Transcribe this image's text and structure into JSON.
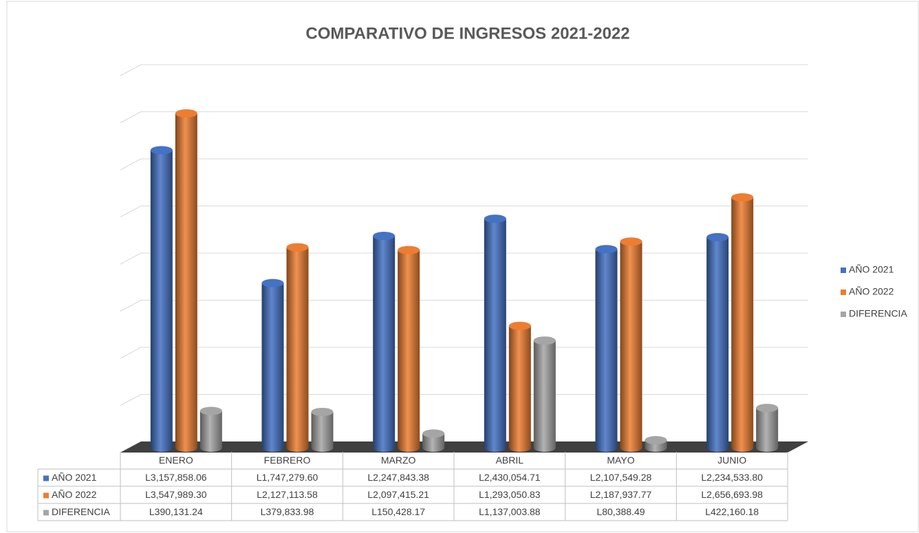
{
  "chart_data": {
    "type": "bar3d",
    "title": "COMPARATIVO DE INGRESOS 2021-2022",
    "categories": [
      "ENERO",
      "FEBRERO",
      "MARZO",
      "ABRIL",
      "MAYO",
      "JUNIO"
    ],
    "series": [
      {
        "name": "AÑO 2021",
        "color": "#4472c4",
        "values": [
          3157858.06,
          1747279.6,
          2247843.38,
          2430054.71,
          2107549.28,
          2234533.8
        ],
        "value_labels": [
          "L3,157,858.06",
          "L1,747,279.60",
          "L2,247,843.38",
          "L2,430,054.71",
          "L2,107,549.28",
          "L2,234,533.80"
        ]
      },
      {
        "name": "AÑO 2022",
        "color": "#ed7d31",
        "values": [
          3547989.3,
          2127113.58,
          2097415.21,
          1293050.83,
          2187937.77,
          2656693.98
        ],
        "value_labels": [
          "L3,547,989.30",
          "L2,127,113.58",
          "L2,097,415.21",
          "L1,293,050.83",
          "L2,187,937.77",
          "L2,656,693.98"
        ]
      },
      {
        "name": "DIFERENCIA",
        "color": "#a5a5a5",
        "values": [
          390131.24,
          379833.98,
          150428.17,
          1137003.88,
          80388.49,
          422160.18
        ],
        "value_labels": [
          "L390,131.24",
          "L379,833.98",
          "L150,428.17",
          "L1,137,003.88",
          "L80,388.49",
          "L422,160.18"
        ]
      }
    ],
    "ylim": [
      0,
      4000000
    ],
    "yticks": [
      0,
      500000,
      1000000,
      1500000,
      2000000,
      2500000,
      3000000,
      3500000,
      4000000
    ],
    "grid": true,
    "legend": "right"
  }
}
